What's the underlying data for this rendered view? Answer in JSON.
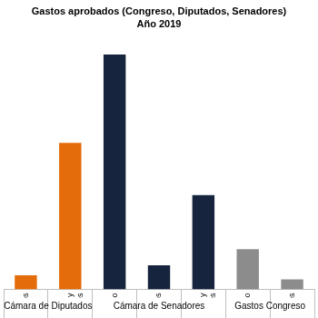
{
  "chart_data": {
    "type": "bar",
    "title": "Gastos aprobados (Congreso, Diputados, Senadores)",
    "subtitle": "Año 2019",
    "categories": [
      "Pasajes y viáticos",
      "Combustibles y lubricantes",
      "Seguro Médico",
      "Pasajes y viáticos",
      "Combustibles y lubricantes",
      "Seguro Médico",
      "Pasajes y viáticos"
    ],
    "category_groups": [
      "Cámara de Diputados",
      "Cámara de Diputados",
      "Cámara de Senadores",
      "Cámara de Senadores",
      "Cámara de Senadores",
      "Gastos Congreso",
      "Gastos Congreso"
    ],
    "values": [
      7,
      73,
      117,
      12,
      47,
      20,
      5
    ],
    "colors": [
      "#e46c0a",
      "#e46c0a",
      "#17243d",
      "#17243d",
      "#17243d",
      "#8c8c8c",
      "#8c8c8c"
    ],
    "ylim": [
      0,
      120
    ],
    "grid": false,
    "tick_labels": "x"
  }
}
